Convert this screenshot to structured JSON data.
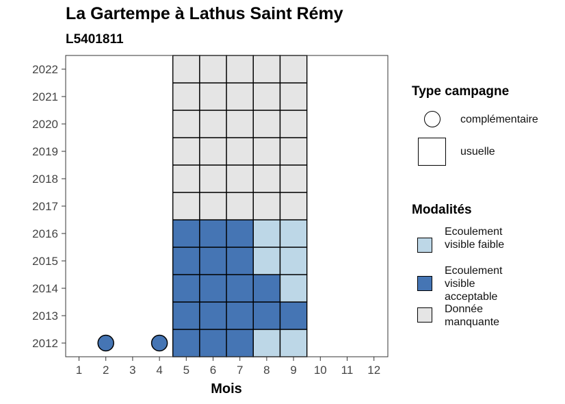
{
  "chart_data": {
    "type": "heatmap",
    "title": "La Gartempe à Lathus Saint Rémy",
    "subtitle": "L5401811",
    "xlabel": "Mois",
    "ylabel": "",
    "x_ticks": [
      "1",
      "2",
      "3",
      "4",
      "5",
      "6",
      "7",
      "8",
      "9",
      "10",
      "11",
      "12"
    ],
    "y_ticks": [
      "2012",
      "2013",
      "2014",
      "2015",
      "2016",
      "2017",
      "2018",
      "2019",
      "2020",
      "2021",
      "2022"
    ],
    "colors": {
      "faible": "#bdd7e7",
      "acceptable": "#4575b4",
      "manquante": "#e5e5e5"
    },
    "usuelle_cells": [
      {
        "year": 2012,
        "month": 5,
        "modalite": "acceptable"
      },
      {
        "year": 2012,
        "month": 6,
        "modalite": "acceptable"
      },
      {
        "year": 2012,
        "month": 7,
        "modalite": "acceptable"
      },
      {
        "year": 2012,
        "month": 8,
        "modalite": "faible"
      },
      {
        "year": 2012,
        "month": 9,
        "modalite": "faible"
      },
      {
        "year": 2013,
        "month": 5,
        "modalite": "acceptable"
      },
      {
        "year": 2013,
        "month": 6,
        "modalite": "acceptable"
      },
      {
        "year": 2013,
        "month": 7,
        "modalite": "acceptable"
      },
      {
        "year": 2013,
        "month": 8,
        "modalite": "acceptable"
      },
      {
        "year": 2013,
        "month": 9,
        "modalite": "acceptable"
      },
      {
        "year": 2014,
        "month": 5,
        "modalite": "acceptable"
      },
      {
        "year": 2014,
        "month": 6,
        "modalite": "acceptable"
      },
      {
        "year": 2014,
        "month": 7,
        "modalite": "acceptable"
      },
      {
        "year": 2014,
        "month": 8,
        "modalite": "acceptable"
      },
      {
        "year": 2014,
        "month": 9,
        "modalite": "faible"
      },
      {
        "year": 2015,
        "month": 5,
        "modalite": "acceptable"
      },
      {
        "year": 2015,
        "month": 6,
        "modalite": "acceptable"
      },
      {
        "year": 2015,
        "month": 7,
        "modalite": "acceptable"
      },
      {
        "year": 2015,
        "month": 8,
        "modalite": "faible"
      },
      {
        "year": 2015,
        "month": 9,
        "modalite": "faible"
      },
      {
        "year": 2016,
        "month": 5,
        "modalite": "acceptable"
      },
      {
        "year": 2016,
        "month": 6,
        "modalite": "acceptable"
      },
      {
        "year": 2016,
        "month": 7,
        "modalite": "acceptable"
      },
      {
        "year": 2016,
        "month": 8,
        "modalite": "faible"
      },
      {
        "year": 2016,
        "month": 9,
        "modalite": "faible"
      },
      {
        "year": 2017,
        "month": 5,
        "modalite": "manquante"
      },
      {
        "year": 2017,
        "month": 6,
        "modalite": "manquante"
      },
      {
        "year": 2017,
        "month": 7,
        "modalite": "manquante"
      },
      {
        "year": 2017,
        "month": 8,
        "modalite": "manquante"
      },
      {
        "year": 2017,
        "month": 9,
        "modalite": "manquante"
      },
      {
        "year": 2018,
        "month": 5,
        "modalite": "manquante"
      },
      {
        "year": 2018,
        "month": 6,
        "modalite": "manquante"
      },
      {
        "year": 2018,
        "month": 7,
        "modalite": "manquante"
      },
      {
        "year": 2018,
        "month": 8,
        "modalite": "manquante"
      },
      {
        "year": 2018,
        "month": 9,
        "modalite": "manquante"
      },
      {
        "year": 2019,
        "month": 5,
        "modalite": "manquante"
      },
      {
        "year": 2019,
        "month": 6,
        "modalite": "manquante"
      },
      {
        "year": 2019,
        "month": 7,
        "modalite": "manquante"
      },
      {
        "year": 2019,
        "month": 8,
        "modalite": "manquante"
      },
      {
        "year": 2019,
        "month": 9,
        "modalite": "manquante"
      },
      {
        "year": 2020,
        "month": 5,
        "modalite": "manquante"
      },
      {
        "year": 2020,
        "month": 6,
        "modalite": "manquante"
      },
      {
        "year": 2020,
        "month": 7,
        "modalite": "manquante"
      },
      {
        "year": 2020,
        "month": 8,
        "modalite": "manquante"
      },
      {
        "year": 2020,
        "month": 9,
        "modalite": "manquante"
      },
      {
        "year": 2021,
        "month": 5,
        "modalite": "manquante"
      },
      {
        "year": 2021,
        "month": 6,
        "modalite": "manquante"
      },
      {
        "year": 2021,
        "month": 7,
        "modalite": "manquante"
      },
      {
        "year": 2021,
        "month": 8,
        "modalite": "manquante"
      },
      {
        "year": 2021,
        "month": 9,
        "modalite": "manquante"
      },
      {
        "year": 2022,
        "month": 5,
        "modalite": "manquante"
      },
      {
        "year": 2022,
        "month": 6,
        "modalite": "manquante"
      },
      {
        "year": 2022,
        "month": 7,
        "modalite": "manquante"
      },
      {
        "year": 2022,
        "month": 8,
        "modalite": "manquante"
      },
      {
        "year": 2022,
        "month": 9,
        "modalite": "manquante"
      }
    ],
    "complementaire_points": [
      {
        "year": 2012,
        "month": 2,
        "modalite": "acceptable"
      },
      {
        "year": 2012,
        "month": 4,
        "modalite": "acceptable"
      }
    ],
    "legend": {
      "type_title": "Type campagne",
      "type_items": [
        {
          "shape": "circle",
          "label": "complémentaire"
        },
        {
          "shape": "square",
          "label": "usuelle"
        }
      ],
      "modalites_title": "Modalités",
      "modalites_items": [
        {
          "key": "faible",
          "label": "Ecoulement visible faible"
        },
        {
          "key": "acceptable",
          "label": "Ecoulement visible acceptable"
        },
        {
          "key": "manquante",
          "label": "Donnée manquante"
        }
      ]
    }
  }
}
